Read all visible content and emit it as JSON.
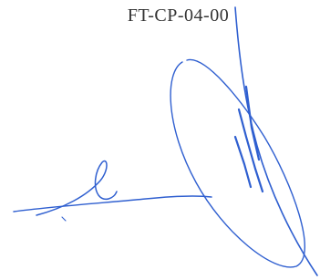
{
  "header": {
    "code": "FT-CP-04-00"
  }
}
